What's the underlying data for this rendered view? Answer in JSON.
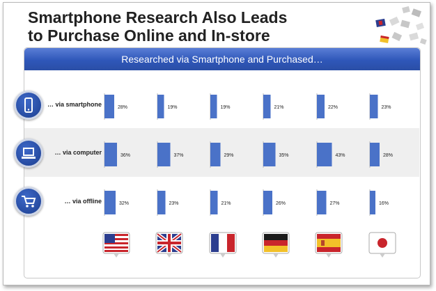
{
  "title_line1": "Smartphone Research Also Leads",
  "title_line2": "to Purchase Online and In-store",
  "panel_header": "Researched via Smartphone and Purchased…",
  "icons": {
    "rows": [
      "smartphone-icon",
      "laptop-icon",
      "shopping-cart-icon"
    ],
    "flags": [
      "usa-flag-icon",
      "uk-flag-icon",
      "france-flag-icon",
      "germany-flag-icon",
      "spain-flag-icon",
      "japan-flag-icon"
    ]
  },
  "colors": {
    "bar": "#4a72c8",
    "header": "#2f57b9",
    "icon": "#1c3e8f"
  },
  "chart_data": {
    "type": "bar",
    "categories": [
      "… via smartphone",
      "… via computer",
      "… via offline"
    ],
    "columns": [
      "USA",
      "UK",
      "France",
      "Germany",
      "Spain",
      "Japan"
    ],
    "values": [
      [
        28,
        19,
        19,
        21,
        22,
        23
      ],
      [
        36,
        37,
        29,
        35,
        43,
        28
      ],
      [
        32,
        23,
        21,
        26,
        27,
        16
      ]
    ],
    "value_labels": [
      [
        "28%",
        "19%",
        "19%",
        "21%",
        "22%",
        "23%"
      ],
      [
        "36%",
        "37%",
        "29%",
        "35%",
        "43%",
        "28%"
      ],
      [
        "32%",
        "23%",
        "21%",
        "26%",
        "27%",
        "16%"
      ]
    ],
    "unit": "%"
  }
}
